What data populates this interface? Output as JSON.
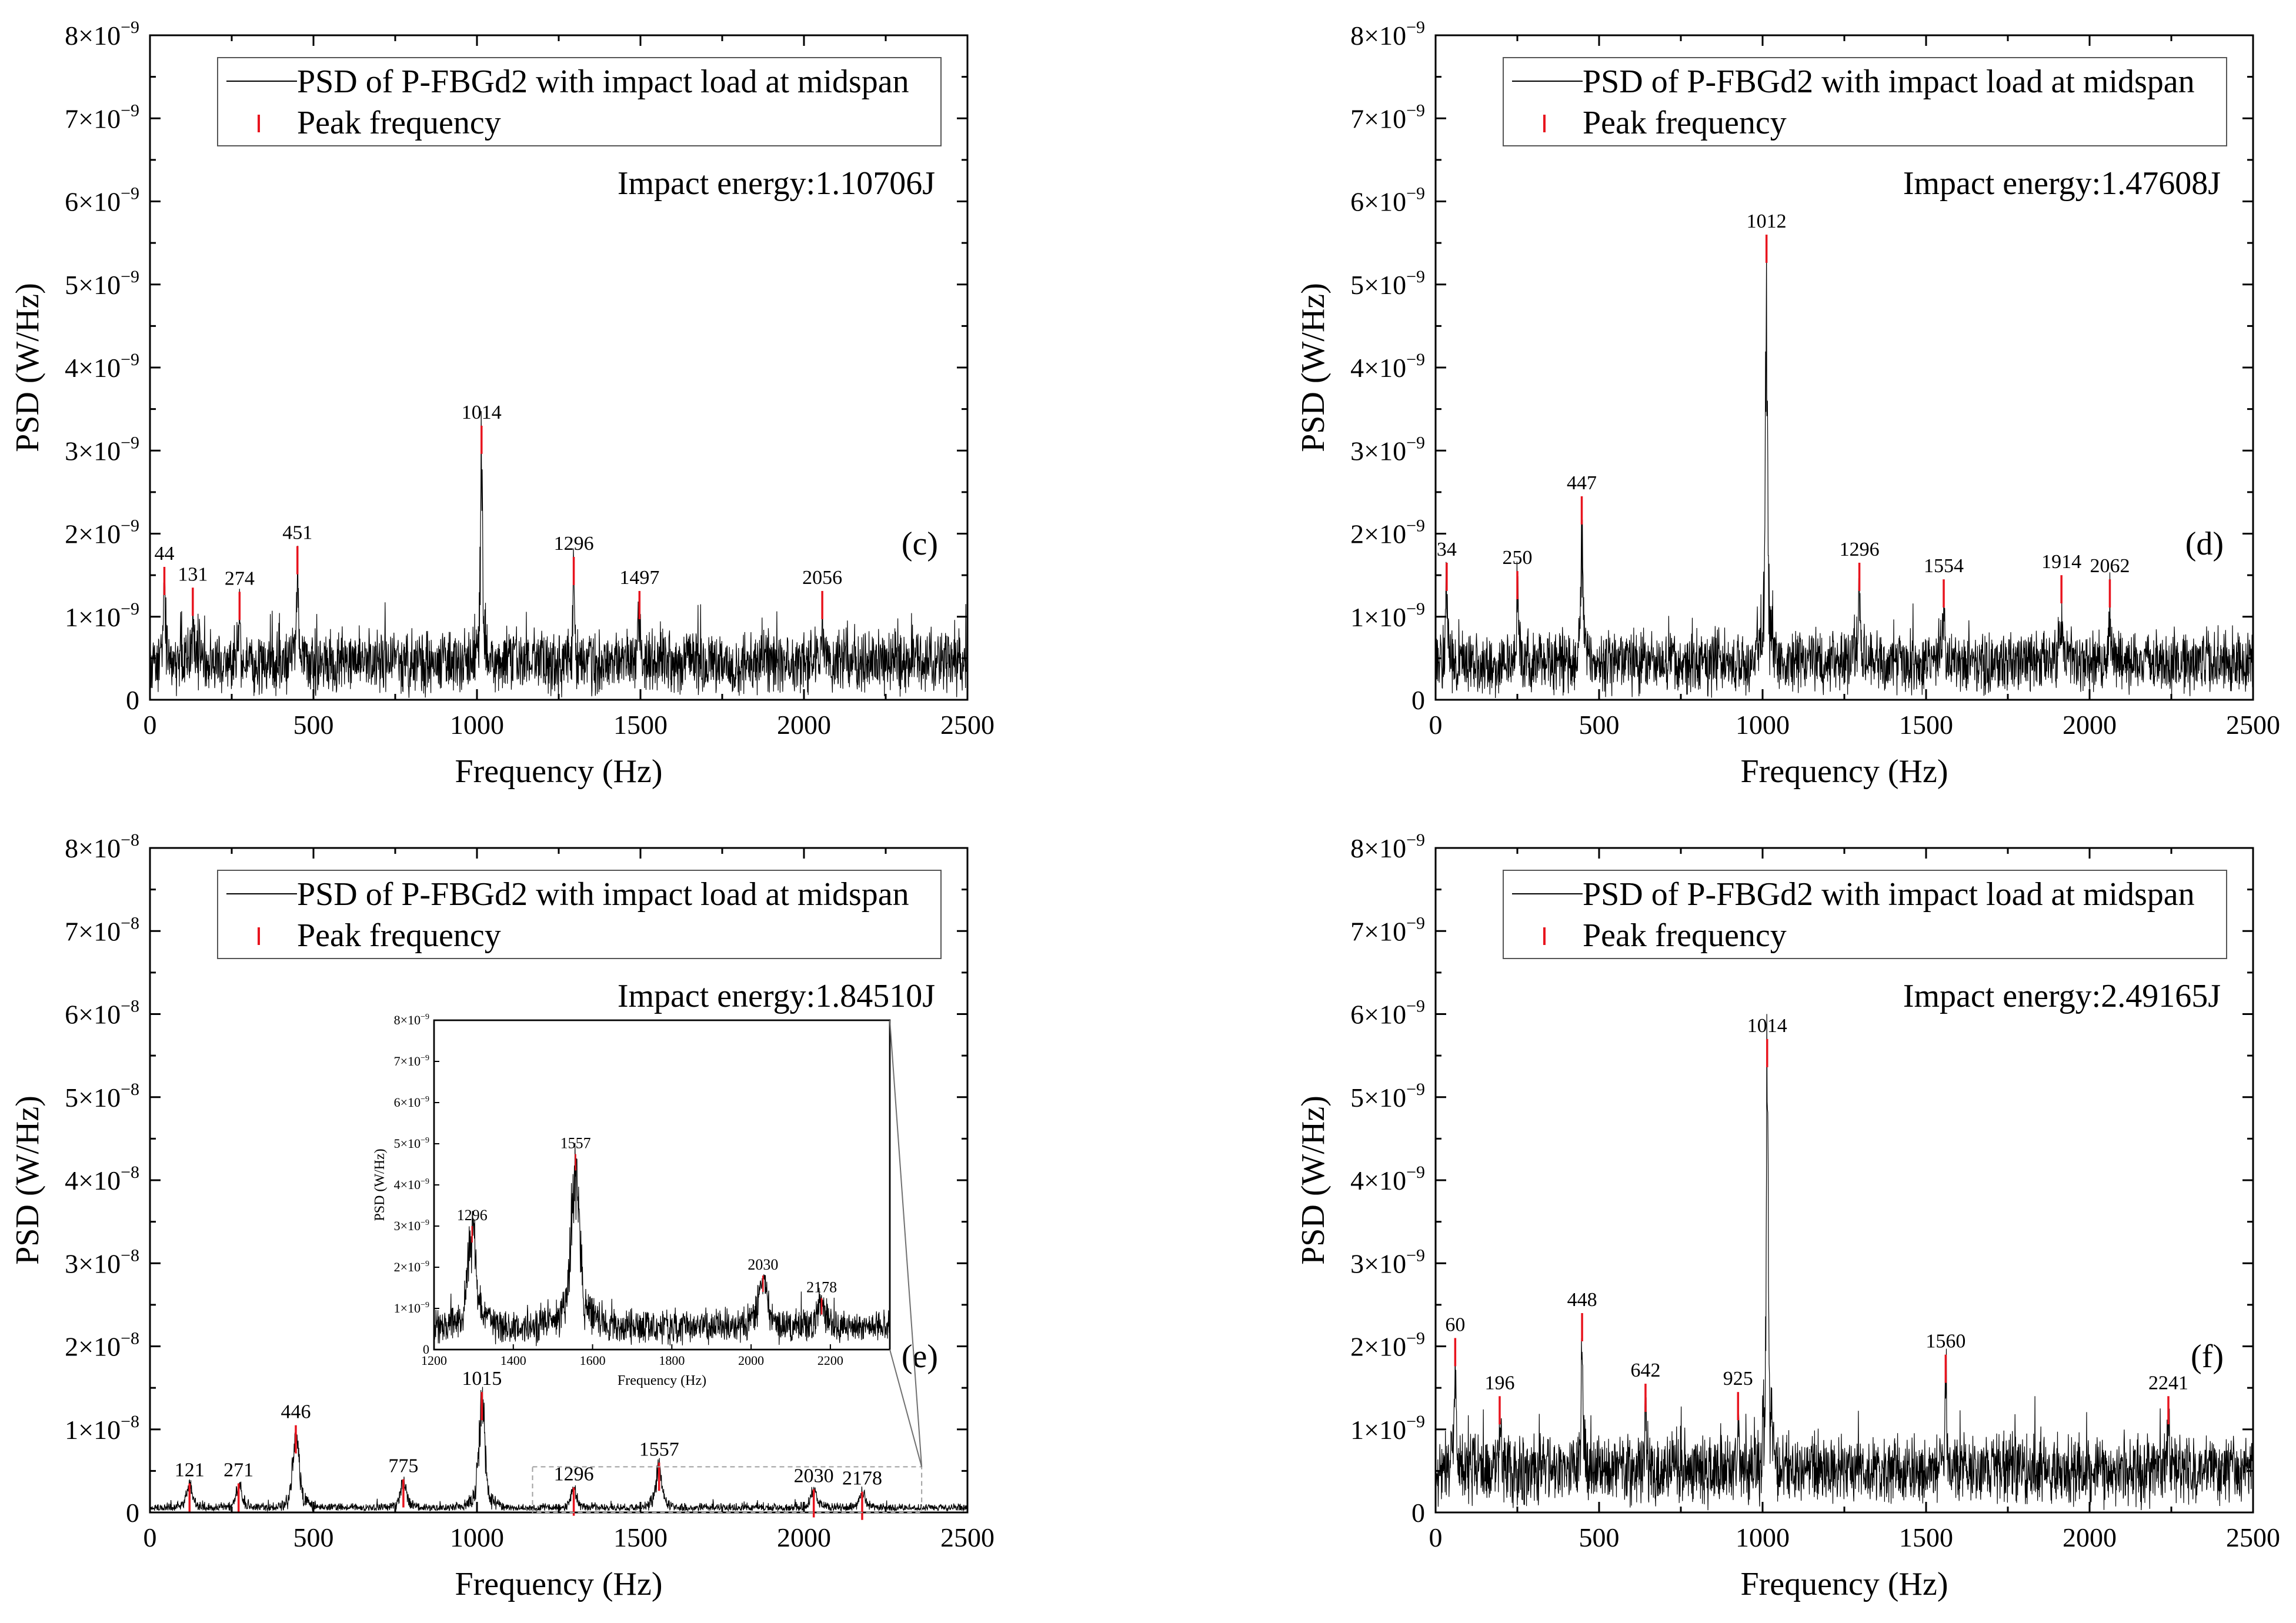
{
  "figure": {
    "colors": {
      "signal": "#000000",
      "peak_marker": "#e8141e",
      "axis": "#000000",
      "inset_box": "#a0a0a0"
    },
    "legend": {
      "psd_label": "PSD of P-FBGd2 with impact load at midspan",
      "peak_label": "Peak frequency"
    }
  },
  "chart_data": [
    {
      "id": "c",
      "type": "line",
      "panel_label": "(c)",
      "title": "Impact energy:1.10706J",
      "xlabel": "Frequency (Hz)",
      "ylabel": "PSD (W/Hz)",
      "xlim": [
        0,
        2500
      ],
      "ylim": [
        0,
        8e-09
      ],
      "exponent": -9,
      "xticks": [
        0,
        500,
        1000,
        1500,
        2000,
        2500
      ],
      "yticks": [
        0,
        1,
        2,
        3,
        4,
        5,
        6,
        7,
        8
      ],
      "ytick_labels": [
        "0",
        "1×10",
        "2×10",
        "3×10",
        "4×10",
        "5×10",
        "6×10",
        "7×10",
        "8×10"
      ],
      "ytick_exp": "−9",
      "noise": {
        "level": 0.45,
        "spread": 0.32
      },
      "peaks": [
        {
          "freq": 44,
          "value": 1.6,
          "label": "44"
        },
        {
          "freq": 131,
          "value": 1.35,
          "label": "131"
        },
        {
          "freq": 274,
          "value": 1.3,
          "label": "274"
        },
        {
          "freq": 451,
          "value": 1.85,
          "label": "451"
        },
        {
          "freq": 1014,
          "value": 3.3,
          "label": "1014"
        },
        {
          "freq": 1296,
          "value": 1.72,
          "label": "1296"
        },
        {
          "freq": 1497,
          "value": 1.31,
          "label": "1497"
        },
        {
          "freq": 2056,
          "value": 1.31,
          "label": "2056"
        }
      ]
    },
    {
      "id": "d",
      "type": "line",
      "panel_label": "(d)",
      "title": "Impact energy:1.47608J",
      "xlabel": "Frequency (Hz)",
      "ylabel": "PSD (W/Hz)",
      "xlim": [
        0,
        2500
      ],
      "ylim": [
        0,
        8e-09
      ],
      "exponent": -9,
      "xticks": [
        0,
        500,
        1000,
        1500,
        2000,
        2500
      ],
      "yticks": [
        0,
        1,
        2,
        3,
        4,
        5,
        6,
        7,
        8
      ],
      "ytick_labels": [
        "0",
        "1×10",
        "2×10",
        "3×10",
        "4×10",
        "5×10",
        "6×10",
        "7×10",
        "8×10"
      ],
      "ytick_exp": "−9",
      "noise": {
        "level": 0.45,
        "spread": 0.32
      },
      "peaks": [
        {
          "freq": 34,
          "value": 1.65,
          "label": "34"
        },
        {
          "freq": 250,
          "value": 1.55,
          "label": "250"
        },
        {
          "freq": 447,
          "value": 2.45,
          "label": "447"
        },
        {
          "freq": 1012,
          "value": 5.6,
          "label": "1012"
        },
        {
          "freq": 1296,
          "value": 1.65,
          "label": "1296"
        },
        {
          "freq": 1554,
          "value": 1.45,
          "label": "1554"
        },
        {
          "freq": 1914,
          "value": 1.5,
          "label": "1914"
        },
        {
          "freq": 2062,
          "value": 1.45,
          "label": "2062"
        }
      ]
    },
    {
      "id": "e",
      "type": "line",
      "panel_label": "(e)",
      "title": "Impact energy:1.84510J",
      "xlabel": "Frequency (Hz)",
      "ylabel": "PSD (W/Hz)",
      "xlim": [
        0,
        2500
      ],
      "ylim": [
        0,
        8e-08
      ],
      "exponent": -8,
      "xticks": [
        0,
        500,
        1000,
        1500,
        2000,
        2500
      ],
      "yticks": [
        0,
        1,
        2,
        3,
        4,
        5,
        6,
        7,
        8
      ],
      "ytick_labels": [
        "0",
        "1×10",
        "2×10",
        "3×10",
        "4×10",
        "5×10",
        "6×10",
        "7×10",
        "8×10"
      ],
      "ytick_exp": "−8",
      "noise": {
        "level": 0.05,
        "spread": 0.05
      },
      "peaks": [
        {
          "freq": 121,
          "value": 0.35,
          "label": "121"
        },
        {
          "freq": 271,
          "value": 0.35,
          "label": "271"
        },
        {
          "freq": 446,
          "value": 1.05,
          "label": "446"
        },
        {
          "freq": 775,
          "value": 0.4,
          "label": "775"
        },
        {
          "freq": 1015,
          "value": 1.45,
          "label": "1015"
        },
        {
          "freq": 1296,
          "value": 0.3,
          "label": "1296"
        },
        {
          "freq": 1557,
          "value": 0.6,
          "label": "1557"
        },
        {
          "freq": 2030,
          "value": 0.28,
          "label": "2030"
        },
        {
          "freq": 2178,
          "value": 0.25,
          "label": "2178"
        }
      ],
      "inset": {
        "xlabel": "Frequency (Hz)",
        "ylabel": "PSD (W/Hz)",
        "xlim": [
          1200,
          2350
        ],
        "ylim": [
          0,
          8e-09
        ],
        "xticks": [
          1200,
          1400,
          1600,
          1800,
          2000,
          2200
        ],
        "yticks": [
          0,
          1,
          2,
          3,
          4,
          5,
          6,
          7,
          8
        ],
        "ytick_labels": [
          "0",
          "1×10",
          "2×10",
          "3×10",
          "4×10",
          "5×10",
          "6×10",
          "7×10",
          "8×10"
        ],
        "ytick_exp": "−9",
        "zoom_range": [
          1170,
          2360
        ],
        "noise": {
          "level": 0.55,
          "spread": 0.35
        },
        "peaks": [
          {
            "freq": 1296,
            "value": 3.0,
            "label": "1296"
          },
          {
            "freq": 1557,
            "value": 4.75,
            "label": "1557"
          },
          {
            "freq": 2030,
            "value": 1.8,
            "label": "2030"
          },
          {
            "freq": 2178,
            "value": 1.25,
            "label": "2178"
          }
        ]
      }
    },
    {
      "id": "f",
      "type": "line",
      "panel_label": "(f)",
      "title": "Impact energy:2.49165J",
      "xlabel": "Frequency (Hz)",
      "ylabel": "PSD (W/Hz)",
      "xlim": [
        0,
        2500
      ],
      "ylim": [
        0,
        8e-09
      ],
      "exponent": -9,
      "xticks": [
        0,
        500,
        1000,
        1500,
        2000,
        2500
      ],
      "yticks": [
        0,
        1,
        2,
        3,
        4,
        5,
        6,
        7,
        8
      ],
      "ytick_labels": [
        "0",
        "1×10",
        "2×10",
        "3×10",
        "4×10",
        "5×10",
        "6×10",
        "7×10",
        "8×10"
      ],
      "ytick_exp": "−9",
      "noise": {
        "level": 0.5,
        "spread": 0.35
      },
      "peaks": [
        {
          "freq": 60,
          "value": 2.1,
          "label": "60"
        },
        {
          "freq": 196,
          "value": 1.4,
          "label": "196"
        },
        {
          "freq": 448,
          "value": 2.4,
          "label": "448"
        },
        {
          "freq": 642,
          "value": 1.55,
          "label": "642"
        },
        {
          "freq": 925,
          "value": 1.45,
          "label": "925"
        },
        {
          "freq": 1014,
          "value": 5.7,
          "label": "1014"
        },
        {
          "freq": 1560,
          "value": 1.9,
          "label": "1560"
        },
        {
          "freq": 2241,
          "value": 1.4,
          "label": "2241"
        }
      ]
    }
  ]
}
